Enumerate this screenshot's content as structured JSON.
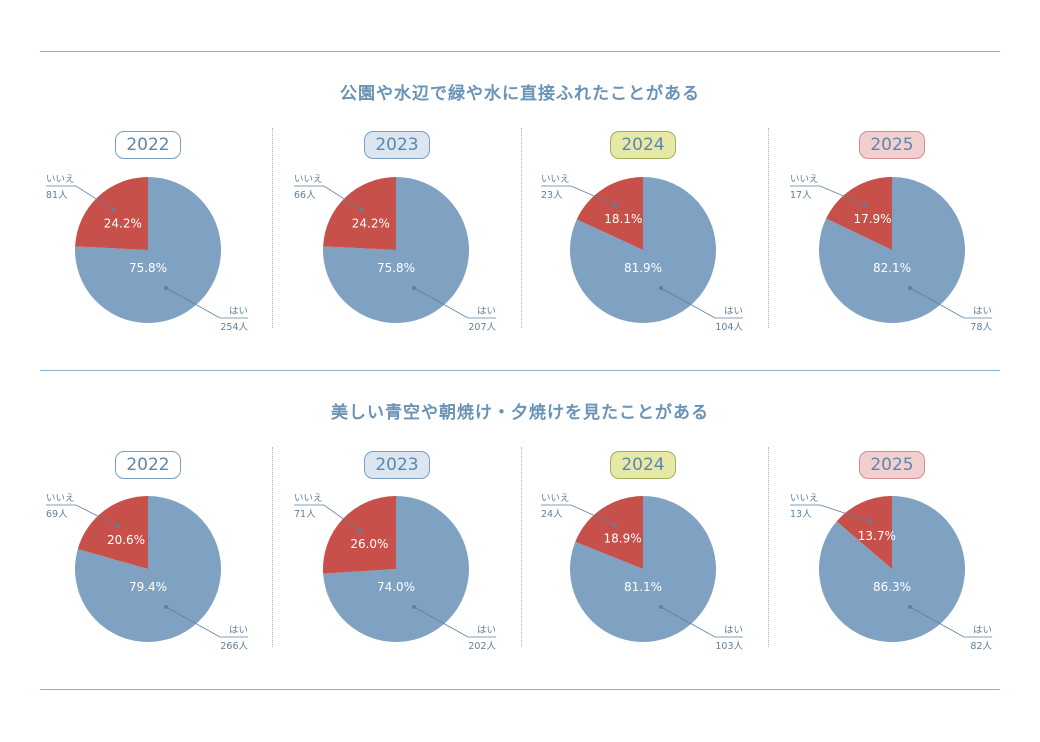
{
  "colors": {
    "yes": "#7fa2c2",
    "no": "#c8504a",
    "rule": "#8fb0c6",
    "label": "#5f7f9a",
    "title": "#6a93b6"
  },
  "legend_labels": {
    "yes": "はい",
    "no": "いいえ"
  },
  "sections": [
    {
      "title": "公園や水辺で緑や水に直接ふれたことがある",
      "years": [
        "2022",
        "2023",
        "2024",
        "2025"
      ]
    },
    {
      "title": "美しい青空や朝焼け・夕焼けを見たことがある",
      "years": [
        "2022",
        "2023",
        "2024",
        "2025"
      ]
    }
  ],
  "year_badges": [
    {
      "year": "2022",
      "bg": "#ffffff",
      "border": "#7a9fc0"
    },
    {
      "year": "2023",
      "bg": "#dbe6f1",
      "border": "#7a9fc0"
    },
    {
      "year": "2024",
      "bg": "#e6e8a6",
      "border": "#a7ab62"
    },
    {
      "year": "2025",
      "bg": "#f2cfcf",
      "border": "#cf8f8f"
    }
  ],
  "chart_data": [
    {
      "type": "pie",
      "title": "公園や水辺で緑や水に直接ふれたことがある",
      "charts": [
        {
          "year": "2022",
          "slices": [
            {
              "label": "はい",
              "percent": 75.8,
              "percent_label": "75.8%",
              "count": "254人"
            },
            {
              "label": "いいえ",
              "percent": 24.2,
              "percent_label": "24.2%",
              "count": "81人"
            }
          ]
        },
        {
          "year": "2023",
          "slices": [
            {
              "label": "はい",
              "percent": 75.8,
              "percent_label": "75.8%",
              "count": "207人"
            },
            {
              "label": "いいえ",
              "percent": 24.2,
              "percent_label": "24.2%",
              "count": "66人"
            }
          ]
        },
        {
          "year": "2024",
          "slices": [
            {
              "label": "はい",
              "percent": 81.9,
              "percent_label": "81.9%",
              "count": "104人"
            },
            {
              "label": "いいえ",
              "percent": 18.1,
              "percent_label": "18.1%",
              "count": "23人"
            }
          ]
        },
        {
          "year": "2025",
          "slices": [
            {
              "label": "はい",
              "percent": 82.1,
              "percent_label": "82.1%",
              "count": "78人"
            },
            {
              "label": "いいえ",
              "percent": 17.9,
              "percent_label": "17.9%",
              "count": "17人"
            }
          ]
        }
      ]
    },
    {
      "type": "pie",
      "title": "美しい青空や朝焼け・夕焼けを見たことがある",
      "charts": [
        {
          "year": "2022",
          "slices": [
            {
              "label": "はい",
              "percent": 79.4,
              "percent_label": "79.4%",
              "count": "266人"
            },
            {
              "label": "いいえ",
              "percent": 20.6,
              "percent_label": "20.6%",
              "count": "69人"
            }
          ]
        },
        {
          "year": "2023",
          "slices": [
            {
              "label": "はい",
              "percent": 74.0,
              "percent_label": "74.0%",
              "count": "202人"
            },
            {
              "label": "いいえ",
              "percent": 26.0,
              "percent_label": "26.0%",
              "count": "71人"
            }
          ]
        },
        {
          "year": "2024",
          "slices": [
            {
              "label": "はい",
              "percent": 81.1,
              "percent_label": "81.1%",
              "count": "103人"
            },
            {
              "label": "いいえ",
              "percent": 18.9,
              "percent_label": "18.9%",
              "count": "24人"
            }
          ]
        },
        {
          "year": "2025",
          "slices": [
            {
              "label": "はい",
              "percent": 86.3,
              "percent_label": "86.3%",
              "count": "82人"
            },
            {
              "label": "いいえ",
              "percent": 13.7,
              "percent_label": "13.7%",
              "count": "13人"
            }
          ]
        }
      ]
    }
  ]
}
